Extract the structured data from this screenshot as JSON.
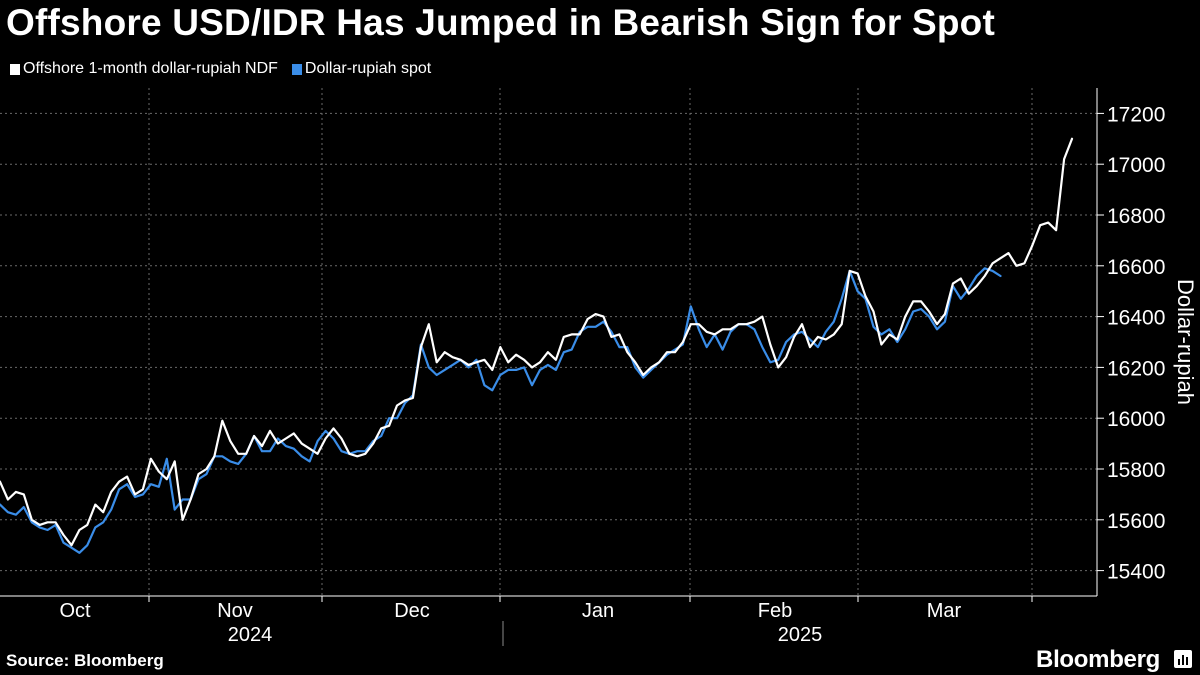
{
  "title": "Offshore USD/IDR Has Jumped in Bearish Sign for Spot",
  "legend": [
    {
      "label": "Offshore 1-month dollar-rupiah NDF",
      "color": "#ffffff"
    },
    {
      "label": "Dollar-rupiah spot",
      "color": "#3a8de8"
    }
  ],
  "source": "Source: Bloomberg",
  "brand": "Bloomberg",
  "chart_data": {
    "type": "line",
    "title": "Offshore USD/IDR Has Jumped in Bearish Sign for Spot",
    "ylabel": "Dollar-rupiah",
    "ylim": [
      15300,
      17300
    ],
    "yticks": [
      15400,
      15600,
      15800,
      16000,
      16200,
      16400,
      16600,
      16800,
      17000,
      17200
    ],
    "xticks": [
      "Oct",
      "Nov",
      "Dec",
      "Jan",
      "Feb",
      "Mar"
    ],
    "years": [
      "2024",
      "2025"
    ],
    "grid": true,
    "legend_position": "top-left",
    "series": [
      {
        "name": "Offshore 1-month dollar-rupiah NDF",
        "color": "#ffffff",
        "values": [
          15750,
          15680,
          15710,
          15700,
          15600,
          15580,
          15590,
          15590,
          15540,
          15500,
          15560,
          15580,
          15660,
          15630,
          15710,
          15750,
          15770,
          15700,
          15720,
          15840,
          15790,
          15760,
          15830,
          15600,
          15680,
          15780,
          15800,
          15850,
          15990,
          15910,
          15860,
          15860,
          15930,
          15890,
          15950,
          15900,
          15920,
          15940,
          15900,
          15880,
          15860,
          15920,
          15960,
          15920,
          15860,
          15850,
          15860,
          15900,
          15960,
          15970,
          16050,
          16070,
          16080,
          16280,
          16370,
          16220,
          16260,
          16240,
          16230,
          16210,
          16220,
          16230,
          16190,
          16280,
          16220,
          16250,
          16230,
          16200,
          16220,
          16260,
          16230,
          16320,
          16330,
          16330,
          16390,
          16410,
          16400,
          16320,
          16330,
          16260,
          16220,
          16170,
          16200,
          16220,
          16260,
          16260,
          16300,
          16370,
          16370,
          16340,
          16330,
          16350,
          16350,
          16370,
          16370,
          16380,
          16400,
          16290,
          16200,
          16240,
          16320,
          16370,
          16280,
          16320,
          16310,
          16330,
          16370,
          16580,
          16570,
          16480,
          16420,
          16290,
          16330,
          16310,
          16400,
          16460,
          16460,
          16420,
          16370,
          16410,
          16530,
          16550,
          16490,
          16520,
          16560,
          16610,
          16630,
          16650,
          16600,
          16610,
          16680,
          16760,
          16770,
          16740,
          17020,
          17100
        ]
      },
      {
        "name": "Dollar-rupiah spot",
        "color": "#3a8de8",
        "values": [
          15660,
          15630,
          15620,
          15650,
          15590,
          15570,
          15560,
          15580,
          15510,
          15490,
          15470,
          15500,
          15570,
          15590,
          15640,
          15720,
          15740,
          15690,
          15700,
          15740,
          15730,
          15840,
          15640,
          15680,
          15680,
          15760,
          15780,
          15850,
          15850,
          15830,
          15820,
          15860,
          15930,
          15870,
          15870,
          15920,
          15890,
          15880,
          15850,
          15830,
          15910,
          15950,
          15920,
          15870,
          15860,
          15870,
          15870,
          15910,
          15930,
          16000,
          16000,
          16060,
          16090,
          16290,
          16200,
          16170,
          16190,
          16210,
          16230,
          16200,
          16230,
          16130,
          16110,
          16170,
          16190,
          16190,
          16200,
          16130,
          16190,
          16210,
          16190,
          16260,
          16270,
          16340,
          16360,
          16360,
          16380,
          16340,
          16280,
          16280,
          16200,
          16160,
          16190,
          16220,
          16250,
          16270,
          16290,
          16440,
          16350,
          16280,
          16330,
          16270,
          16340,
          16370,
          16370,
          16350,
          16280,
          16220,
          16230,
          16300,
          16330,
          16340,
          16310,
          16280,
          16340,
          16380,
          16470,
          16580,
          16500,
          16470,
          16360,
          16330,
          16350,
          16300,
          16350,
          16420,
          16430,
          16400,
          16350,
          16380,
          16520,
          16470,
          16510,
          16560,
          16590,
          16580,
          16560
        ]
      }
    ]
  }
}
